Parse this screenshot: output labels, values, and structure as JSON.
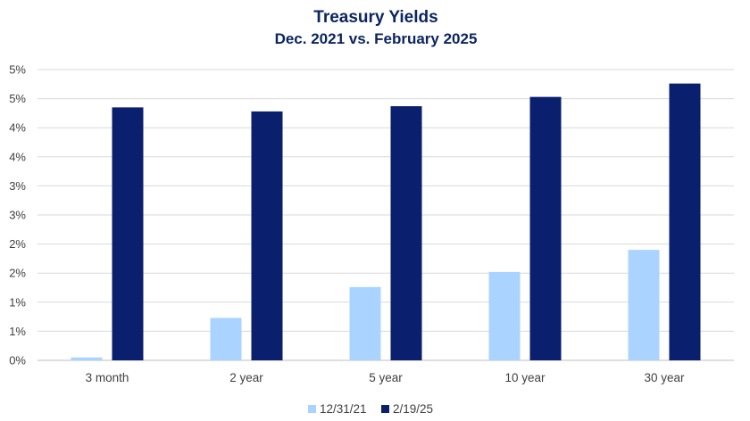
{
  "chart_data": {
    "type": "bar",
    "title": "Treasury Yields",
    "subtitle": "Dec. 2021 vs. February 2025",
    "categories": [
      "3 month",
      "2 year",
      "5 year",
      "10 year",
      "30 year"
    ],
    "series": [
      {
        "name": "12/31/21",
        "color": "#aad4ff",
        "values": [
          0.05,
          0.73,
          1.26,
          1.52,
          1.9
        ]
      },
      {
        "name": "2/19/25",
        "color": "#0a1f6e",
        "values": [
          4.35,
          4.28,
          4.37,
          4.53,
          4.76
        ]
      }
    ],
    "ylim": [
      0,
      5
    ],
    "yticks": [
      0,
      0.5,
      1,
      1.5,
      2,
      2.5,
      3,
      3.5,
      4,
      4.5,
      5
    ],
    "ytick_labels": [
      "0%",
      "1%",
      "1%",
      "2%",
      "2%",
      "3%",
      "3%",
      "4%",
      "4%",
      "5%",
      "5%"
    ],
    "xlabel": "",
    "ylabel": "",
    "grid": true,
    "legend": "bottom"
  }
}
